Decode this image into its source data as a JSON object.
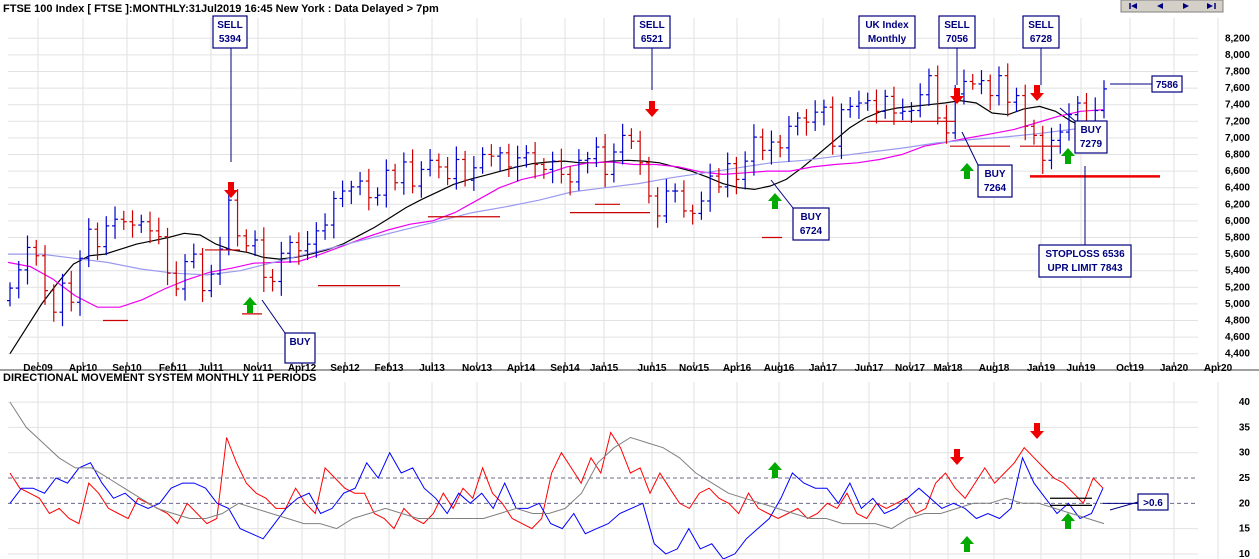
{
  "chart_data": [
    {
      "type": "ohlc",
      "title": "FTSE 100 Index [ FTSE ]:MONTHLY:31Jul2019 16:45 New York : Data Delayed > 7pm",
      "x_ticks": [
        "Dec09",
        "Apr10",
        "Sep10",
        "Feb11",
        "Jul11",
        "Nov11",
        "Apr12",
        "Sep12",
        "Feb13",
        "Jul13",
        "Nov13",
        "Apr14",
        "Sep14",
        "Jan15",
        "Jun15",
        "Nov15",
        "Apr16",
        "Aug16",
        "Jan17",
        "Jun17",
        "Nov17",
        "Mar18",
        "Aug18",
        "Jan19",
        "Jun19",
        "Oct19",
        "Jan20",
        "Apr20"
      ],
      "y_ticks": [
        4400,
        4600,
        4800,
        5000,
        5200,
        5400,
        5600,
        5800,
        6000,
        6200,
        6400,
        6600,
        6800,
        7000,
        7200,
        7400,
        7600,
        7800,
        8000,
        8200
      ],
      "ylim": [
        4300,
        8300
      ],
      "series": [
        {
          "name": "close",
          "values": [
            5190,
            5410,
            5680,
            5580,
            5160,
            4900,
            5250,
            5020,
            5550,
            5900,
            5690,
            5940,
            6020,
            5990,
            5950,
            5990,
            5880,
            5810,
            5370,
            5180,
            5510,
            5600,
            5160,
            5360,
            5660,
            6250,
            5820,
            5700,
            5770,
            5320,
            5270,
            5610,
            5740,
            5640,
            5720,
            5880,
            5950,
            6270,
            6360,
            6410,
            6480,
            6280,
            6310,
            6610,
            6460,
            6710,
            6420,
            6620,
            6730,
            6650,
            6510,
            6740,
            6490,
            6640,
            6800,
            6780,
            6820,
            6650,
            6760,
            6820,
            6680,
            6620,
            6720,
            6560,
            6470,
            6730,
            6750,
            6890,
            6560,
            6830,
            7030,
            6960,
            6700,
            6300,
            6060,
            6360,
            6360,
            6120,
            6090,
            6240,
            6540,
            6410,
            6690,
            6500,
            6720,
            7010,
            6850,
            6950,
            6880,
            7140,
            7240,
            7190,
            7310,
            7370,
            6900,
            7340,
            7380,
            7420,
            7450,
            7320,
            7500,
            7300,
            7320,
            7330,
            7520,
            7750,
            7240,
            7060,
            7530,
            7680,
            7650,
            7690,
            7510,
            7750,
            7430,
            7510,
            7140,
            7030,
            6730,
            6970,
            7070,
            7280,
            7420,
            7160,
            7330,
            7590
          ]
        },
        {
          "name": "moving average (black)",
          "values": [
            4400,
            4700,
            5000,
            5250,
            5480,
            5580,
            5600,
            5660,
            5720,
            5760,
            5800,
            5850,
            5830,
            5720,
            5650,
            5620,
            5560,
            5540,
            5560,
            5600,
            5650,
            5720,
            5820,
            5920,
            6040,
            6160,
            6260,
            6350,
            6440,
            6500,
            6550,
            6600,
            6650,
            6690,
            6710,
            6720,
            6700,
            6700,
            6720,
            6730,
            6720,
            6700,
            6650,
            6600,
            6530,
            6450,
            6400,
            6380,
            6420,
            6500,
            6640,
            6800,
            6960,
            7120,
            7240,
            7320,
            7360,
            7380,
            7400,
            7420,
            7450,
            7420,
            7300,
            7280,
            7350,
            7380,
            7320,
            7200,
            7120,
            7140
          ]
        },
        {
          "name": "moving average (magenta)",
          "values": [
            5500,
            5450,
            5300,
            5100,
            4960,
            4960,
            5050,
            5180,
            5290,
            5380,
            5430,
            5490,
            5500,
            5510,
            5600,
            5700,
            5800,
            5890,
            5960,
            6000,
            6100,
            6250,
            6400,
            6500,
            6560,
            6650,
            6700,
            6710,
            6680,
            6680,
            6650,
            6590,
            6560,
            6580,
            6600,
            6600,
            6650,
            6680,
            6700,
            6740,
            6800,
            6900,
            6950,
            7000,
            7050,
            7100,
            7180,
            7260,
            7320,
            7340
          ]
        },
        {
          "name": "moving average (lavender)",
          "values": [
            5600,
            5600,
            5550,
            5500,
            5420,
            5370,
            5350,
            5400,
            5500,
            5600,
            5700,
            5800,
            5900,
            6000,
            6100,
            6170,
            6250,
            6350,
            6400,
            6450,
            6520,
            6580,
            6640,
            6700,
            6730,
            6780,
            6830,
            6880,
            6940,
            6980,
            7010,
            7050,
            7100,
            7150
          ]
        }
      ],
      "signals": [
        {
          "label": "SELL 5394"
        },
        {
          "label": "SELL 6521"
        },
        {
          "label": "UK Index Monthly"
        },
        {
          "label": "SELL 7056"
        },
        {
          "label": "SELL 6728"
        },
        {
          "label": "BUY"
        },
        {
          "label": "BUY 6724"
        },
        {
          "label": "BUY 7264"
        },
        {
          "label": "BUY 7279"
        },
        {
          "label": "STOPLOSS 6536 UPR LIMIT 7843"
        },
        {
          "label": "7586"
        }
      ]
    },
    {
      "type": "line",
      "title": "DIRECTIONAL MOVEMENT SYSTEM MONTHLY 11 PERIODS",
      "y_ticks": [
        10,
        15,
        20,
        25,
        30,
        35,
        40
      ],
      "ylim": [
        9,
        42
      ],
      "reference_lines": [
        20,
        25
      ],
      "annotation": ">0.6",
      "series": [
        {
          "name": "red",
          "color": "#ff0000",
          "values": [
            26,
            23,
            22,
            21,
            18,
            19,
            17,
            16,
            24,
            22,
            19,
            18,
            17,
            21,
            20,
            19,
            18,
            16,
            20,
            18,
            16,
            17,
            33,
            28,
            24,
            22,
            21,
            19,
            19,
            23,
            20,
            18,
            27,
            25,
            23,
            22,
            22,
            18,
            17,
            15,
            19,
            17,
            16,
            18,
            22,
            19,
            23,
            21,
            27,
            22,
            20,
            17,
            16,
            15,
            17,
            26,
            30,
            27,
            24,
            29,
            26,
            34,
            31,
            26,
            27,
            22,
            26,
            23,
            20,
            19,
            22,
            23,
            21,
            20,
            18,
            22,
            19,
            18,
            17,
            18,
            19,
            17,
            18,
            20,
            19,
            22,
            18,
            17,
            20,
            19,
            20,
            21,
            18,
            19,
            24,
            26,
            23,
            21,
            24,
            27,
            24,
            26,
            28,
            31,
            29,
            27,
            25,
            24,
            22,
            20,
            25,
            23
          ]
        },
        {
          "name": "blue",
          "color": "#0000ff",
          "values": [
            20,
            23,
            23,
            22,
            25,
            24,
            27,
            28,
            24,
            21,
            22,
            20,
            19,
            20,
            23,
            24,
            24,
            23,
            20,
            19,
            15,
            14,
            13,
            16,
            19,
            21,
            22,
            18,
            19,
            22,
            23,
            28,
            25,
            30,
            26,
            27,
            23,
            21,
            18,
            22,
            20,
            22,
            19,
            24,
            19,
            19,
            20,
            16,
            15,
            18,
            14,
            15,
            16,
            18,
            19,
            20,
            12,
            10,
            11,
            15,
            11,
            12,
            9,
            10,
            13,
            15,
            17,
            21,
            26,
            24,
            23,
            23,
            20,
            24,
            19,
            21,
            18,
            19,
            21,
            23,
            21,
            19,
            20,
            19,
            17,
            18,
            17,
            19,
            29,
            24,
            21,
            18,
            20,
            17,
            18,
            23
          ]
        },
        {
          "name": "grey",
          "color": "#808080",
          "values": [
            40,
            35,
            32,
            29,
            27,
            27,
            25,
            23,
            21,
            19,
            18,
            17,
            17,
            18,
            20,
            19,
            18,
            17,
            16,
            16,
            15,
            17,
            18,
            19,
            18,
            17,
            17,
            17,
            17,
            17,
            18,
            19,
            18,
            18,
            19,
            22,
            28,
            31,
            33,
            32,
            31,
            29,
            26,
            24,
            22,
            21,
            20,
            19,
            18,
            17,
            17,
            16,
            16,
            16,
            15,
            17,
            18,
            18,
            19,
            20,
            20,
            21,
            20,
            20,
            19,
            18,
            17,
            16
          ]
        }
      ],
      "signals": [
        ">0.6"
      ]
    }
  ]
}
